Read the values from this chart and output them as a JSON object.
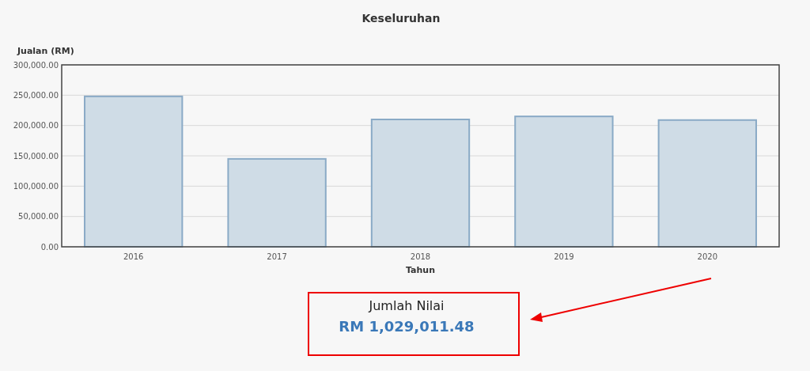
{
  "chart_data": {
    "type": "bar",
    "title": "Keseluruhan",
    "xlabel": "Tahun",
    "ylabel": "Jualan (RM)",
    "categories": [
      "2016",
      "2017",
      "2018",
      "2019",
      "2020"
    ],
    "values": [
      248000,
      145000,
      210000,
      215000,
      209000
    ],
    "color": "#cfdce6",
    "ylim": [
      0,
      300000
    ],
    "yticks": [
      {
        "value": 0,
        "label": "0.00"
      },
      {
        "value": 50000,
        "label": "50,000.00"
      },
      {
        "value": 100000,
        "label": "100,000.00"
      },
      {
        "value": 150000,
        "label": "150,000.00"
      },
      {
        "value": 200000,
        "label": "200,000.00"
      },
      {
        "value": 250000,
        "label": "250,000.00"
      },
      {
        "value": 300000,
        "label": "300,000.00"
      }
    ],
    "grid": "y",
    "annotations": [
      "Jumlah Nilai",
      "RM 1,029,011.48"
    ]
  }
}
